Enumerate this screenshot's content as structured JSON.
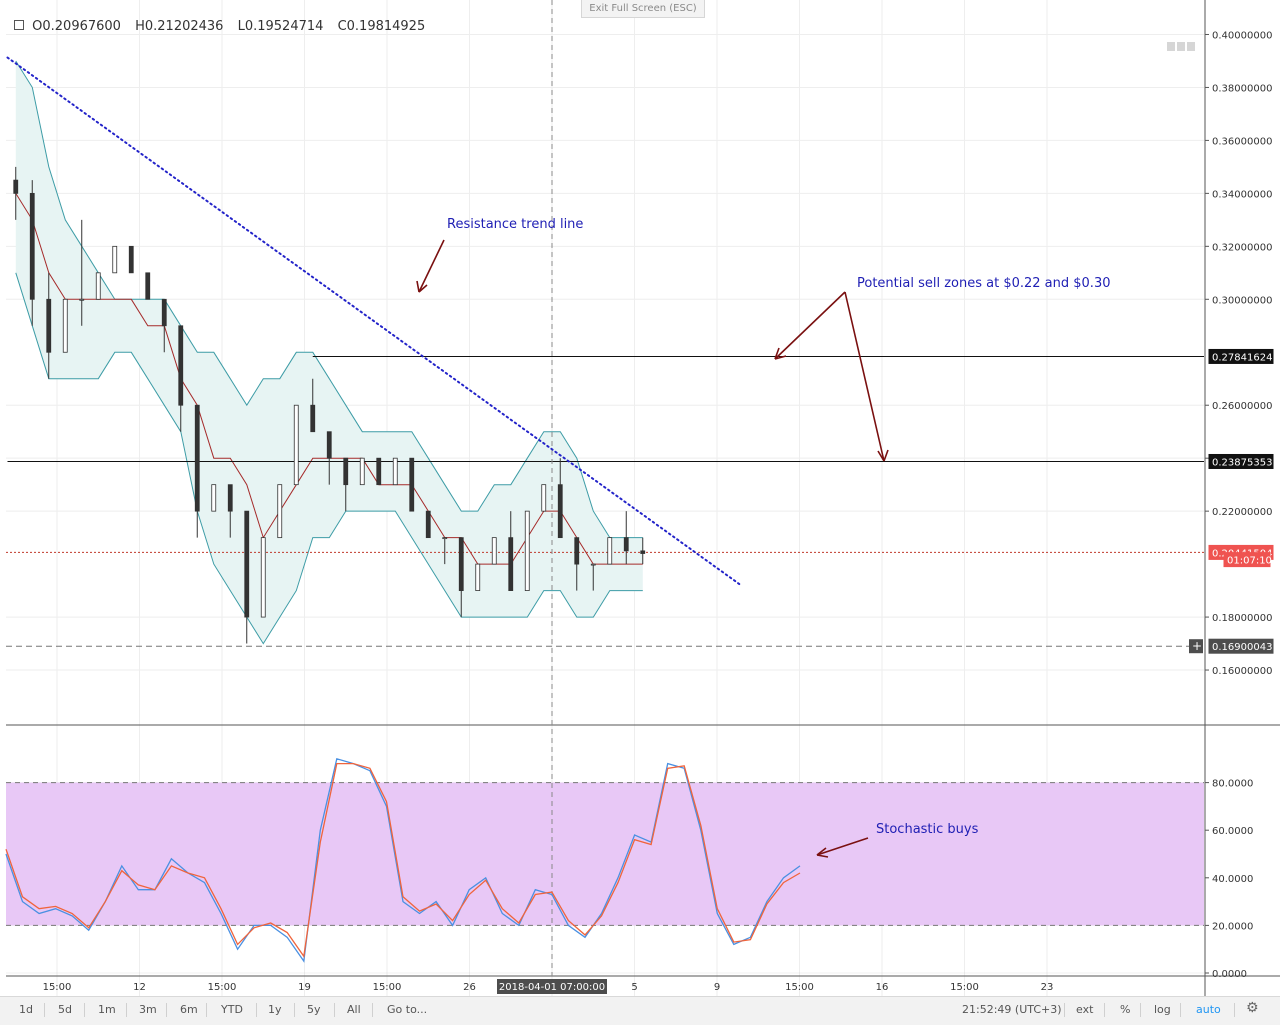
{
  "ui": {
    "exit_fullscreen": "Exit Full Screen (ESC)",
    "ohlc": {
      "o_label": "O",
      "o": "0.20967600",
      "h_label": "H",
      "h": "0.21202436",
      "l_label": "L",
      "l": "0.19524714",
      "c_label": "C",
      "c": "0.19814925"
    },
    "timeframes": [
      "1d",
      "5d",
      "1m",
      "3m",
      "6m",
      "YTD",
      "1y",
      "5y",
      "All"
    ],
    "goto": "Go to...",
    "clock": "21:52:49 (UTC+3)",
    "right_buttons": [
      "ext",
      "%",
      "log",
      "auto"
    ],
    "active_button": "auto",
    "icons": {
      "settings": "gear-icon",
      "crosshair_marker": "plus-icon"
    },
    "colors": {
      "candle_up": "#26a69a",
      "candle_down": "#ef5350",
      "candle_body": "#444444",
      "bollinger": "#3d9ca6",
      "bollinger_fill": "#e7f4f3",
      "ma_mid": "#a52a2a",
      "trendline": "#2323c9",
      "stoch_k": "#4a90e2",
      "stoch_d": "#f0643c",
      "stoch_band": "#e8c8f6",
      "annotation_text": "#1f1fb4",
      "arrow": "#7a1010"
    }
  },
  "chart_data": [
    {
      "type": "candlestick",
      "title": "",
      "ylim": [
        0.14,
        0.41
      ],
      "y_ticks": [
        "0.40000000",
        "0.38000000",
        "0.36000000",
        "0.34000000",
        "0.32000000",
        "0.30000000",
        "0.26000000",
        "0.24000000",
        "0.22000000",
        "0.18000000",
        "0.16000000"
      ],
      "x_ticks": [
        {
          "label": "15:00",
          "x": 0.0
        },
        {
          "label": "12",
          "x": 5.0
        },
        {
          "label": "15:00",
          "x": 10.0
        },
        {
          "label": "19",
          "x": 15.0
        },
        {
          "label": "15:00",
          "x": 20.0
        },
        {
          "label": "26",
          "x": 25.0
        },
        {
          "label": "2018-04-01 07:00:00",
          "x": 30.0
        },
        {
          "label": "5",
          "x": 35.0
        },
        {
          "label": "9",
          "x": 40.0
        },
        {
          "label": "15:00",
          "x": 45.0
        },
        {
          "label": "16",
          "x": 50.0
        },
        {
          "label": "15:00",
          "x": 55.0
        },
        {
          "label": "23",
          "x": 60.0
        }
      ],
      "price_labels": [
        {
          "text": "0.27841624",
          "value": 0.27841624
        },
        {
          "text": "0.23875353",
          "value": 0.23875353
        },
        {
          "text": "0.20441504",
          "value": 0.20441504
        },
        {
          "text": "01:07:10",
          "value": 0.2017
        },
        {
          "text": "0.16900043",
          "value": 0.16900043
        }
      ],
      "horizontal_levels": [
        {
          "value": 0.27841624,
          "from_x": 15.5
        },
        {
          "value": 0.23875353,
          "from_x": -3
        }
      ],
      "last_price": 0.20441504,
      "dashed_level": 0.16900043,
      "crosshair_x": 30.0,
      "trendline": {
        "from": [
          -3,
          0.3913
        ],
        "to": [
          41.5,
          0.1918
        ]
      },
      "candles": [
        [
          0.345,
          0.35,
          0.34,
          0.33
        ],
        [
          0.34,
          0.345,
          0.3,
          0.29
        ],
        [
          0.3,
          0.31,
          0.28,
          0.27
        ],
        [
          0.28,
          0.29,
          0.3,
          0.29
        ],
        [
          0.3,
          0.33,
          0.3,
          0.29
        ],
        [
          0.3,
          0.31,
          0.31,
          0.3
        ],
        [
          0.31,
          0.31,
          0.32,
          0.31
        ],
        [
          0.32,
          0.32,
          0.31,
          0.31
        ],
        [
          0.31,
          0.31,
          0.3,
          0.3
        ],
        [
          0.3,
          0.3,
          0.29,
          0.28
        ],
        [
          0.29,
          0.29,
          0.26,
          0.25
        ],
        [
          0.26,
          0.26,
          0.22,
          0.21
        ],
        [
          0.22,
          0.23,
          0.23,
          0.22
        ],
        [
          0.23,
          0.23,
          0.22,
          0.21
        ],
        [
          0.22,
          0.22,
          0.18,
          0.17
        ],
        [
          0.18,
          0.18,
          0.21,
          0.2
        ],
        [
          0.21,
          0.22,
          0.23,
          0.22
        ],
        [
          0.23,
          0.24,
          0.26,
          0.25
        ],
        [
          0.26,
          0.27,
          0.25,
          0.25
        ],
        [
          0.25,
          0.25,
          0.24,
          0.23
        ],
        [
          0.24,
          0.24,
          0.23,
          0.22
        ],
        [
          0.23,
          0.24,
          0.24,
          0.23
        ],
        [
          0.24,
          0.24,
          0.23,
          0.23
        ],
        [
          0.23,
          0.24,
          0.24,
          0.23
        ],
        [
          0.24,
          0.24,
          0.22,
          0.22
        ],
        [
          0.22,
          0.22,
          0.21,
          0.21
        ],
        [
          0.21,
          0.21,
          0.21,
          0.2
        ],
        [
          0.21,
          0.21,
          0.19,
          0.18
        ],
        [
          0.19,
          0.2,
          0.2,
          0.19
        ],
        [
          0.2,
          0.21,
          0.21,
          0.2
        ],
        [
          0.21,
          0.22,
          0.19,
          0.19
        ],
        [
          0.19,
          0.2,
          0.22,
          0.21
        ],
        [
          0.22,
          0.23,
          0.23,
          0.22
        ],
        [
          0.23,
          0.24,
          0.21,
          0.21
        ],
        [
          0.21,
          0.21,
          0.2,
          0.19
        ],
        [
          0.2,
          0.2,
          0.2,
          0.19
        ],
        [
          0.2,
          0.21,
          0.21,
          0.2
        ],
        [
          0.21,
          0.22,
          0.205,
          0.2
        ],
        [
          0.205,
          0.21,
          0.204,
          0.2
        ]
      ],
      "candle_x0": -2.5,
      "candle_step": 1.0,
      "bollinger": {
        "upper": [
          0.39,
          0.38,
          0.35,
          0.33,
          0.32,
          0.31,
          0.3,
          0.3,
          0.3,
          0.3,
          0.29,
          0.28,
          0.28,
          0.27,
          0.26,
          0.27,
          0.27,
          0.28,
          0.28,
          0.27,
          0.26,
          0.25,
          0.25,
          0.25,
          0.25,
          0.24,
          0.23,
          0.22,
          0.22,
          0.23,
          0.23,
          0.24,
          0.25,
          0.25,
          0.24,
          0.22,
          0.21,
          0.21,
          0.21
        ],
        "mid": [
          0.34,
          0.33,
          0.31,
          0.3,
          0.3,
          0.3,
          0.3,
          0.3,
          0.29,
          0.29,
          0.27,
          0.26,
          0.24,
          0.24,
          0.23,
          0.21,
          0.22,
          0.23,
          0.24,
          0.24,
          0.24,
          0.24,
          0.23,
          0.23,
          0.23,
          0.22,
          0.21,
          0.21,
          0.2,
          0.2,
          0.2,
          0.21,
          0.22,
          0.22,
          0.21,
          0.2,
          0.2,
          0.2,
          0.2
        ],
        "lower": [
          0.31,
          0.29,
          0.27,
          0.27,
          0.27,
          0.27,
          0.28,
          0.28,
          0.27,
          0.26,
          0.25,
          0.22,
          0.2,
          0.19,
          0.18,
          0.17,
          0.18,
          0.19,
          0.21,
          0.21,
          0.22,
          0.22,
          0.22,
          0.22,
          0.21,
          0.2,
          0.19,
          0.18,
          0.18,
          0.18,
          0.18,
          0.18,
          0.19,
          0.19,
          0.18,
          0.18,
          0.19,
          0.19,
          0.19
        ]
      },
      "annotations": [
        {
          "text": "Resistance trend line"
        },
        {
          "text": "Potential sell zones at $0.22 and $0.30"
        }
      ]
    },
    {
      "type": "line",
      "title": "",
      "ylim": [
        0,
        100
      ],
      "y_ticks": [
        "80.0000",
        "60.0000",
        "40.0000",
        "20.0000",
        "0.0000"
      ],
      "band": [
        20,
        80
      ],
      "series": [
        {
          "values": [
            50,
            30,
            25,
            27,
            24,
            18,
            30,
            45,
            35,
            35,
            48,
            42,
            38,
            25,
            10,
            20,
            20,
            15,
            5,
            60,
            90,
            88,
            85,
            70,
            30,
            25,
            30,
            20,
            35,
            40,
            25,
            20,
            35,
            33,
            20,
            15,
            25,
            40,
            58,
            55,
            88,
            86,
            60,
            25,
            12,
            15,
            30,
            40,
            45
          ]
        },
        {
          "values": [
            52,
            32,
            27,
            28,
            25,
            19,
            30,
            43,
            37,
            35,
            45,
            42,
            40,
            27,
            12,
            19,
            21,
            17,
            7,
            55,
            88,
            88,
            86,
            72,
            32,
            26,
            29,
            22,
            33,
            39,
            27,
            21,
            33,
            34,
            22,
            16,
            24,
            38,
            56,
            54,
            86,
            87,
            62,
            27,
            13,
            14,
            29,
            38,
            42
          ]
        }
      ],
      "annotations": [
        {
          "text": "Stochastic buys"
        }
      ]
    }
  ]
}
